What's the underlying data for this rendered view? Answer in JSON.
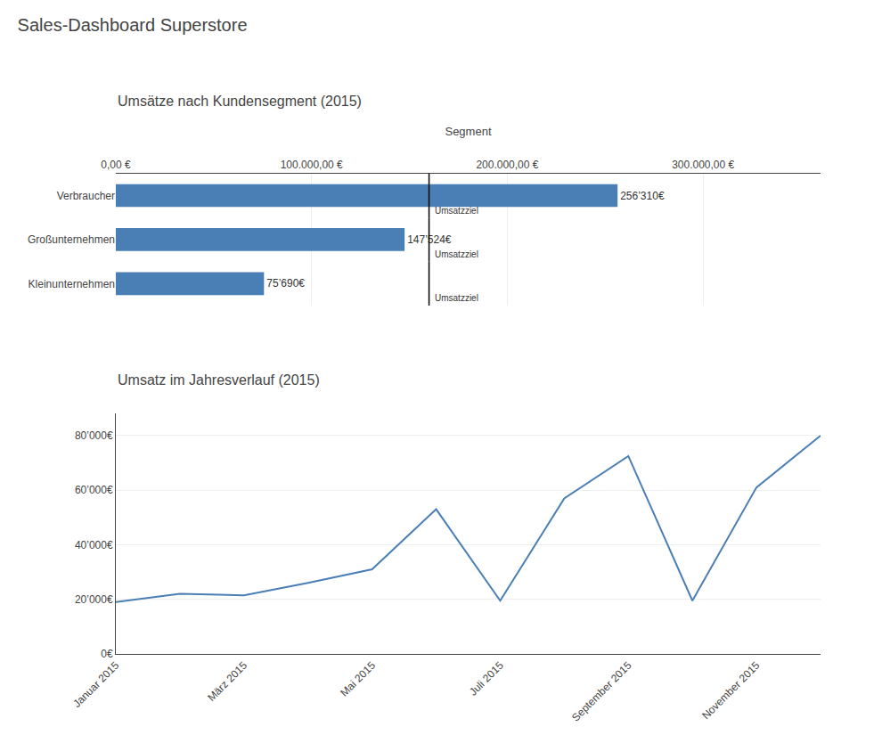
{
  "title": "Sales-Dashboard Superstore",
  "chart_data": [
    {
      "type": "bar",
      "orientation": "horizontal",
      "title": "Umsätze nach Kundensegment (2015)",
      "xlabel": "Segment",
      "categories": [
        "Kleinunternehmen",
        "Großunternehmen",
        "Verbraucher"
      ],
      "values": [
        75690,
        147524,
        256310
      ],
      "value_labels": [
        "75’690€",
        "147’524€",
        "256’310€"
      ],
      "data_labels": true,
      "color": "#4a7fb5",
      "xlim": [
        0,
        360000
      ],
      "xticks": [
        {
          "value": 0,
          "label": "0,00 €"
        },
        {
          "value": 100000,
          "label": "100.000,00 €"
        },
        {
          "value": 200000,
          "label": "200.000,00 €"
        },
        {
          "value": 300000,
          "label": "300.000,00 €"
        }
      ],
      "grid": true,
      "annotations": [
        {
          "text": "Umsatzziel",
          "x": 160000,
          "category": "Verbraucher"
        },
        {
          "text": "Umsatzziel",
          "x": 160000,
          "category": "Großunternehmen"
        },
        {
          "text": "Umsatzziel",
          "x": 160000,
          "category": "Kleinunternehmen"
        }
      ]
    },
    {
      "type": "line",
      "title": "Umsatz im Jahresverlauf (2015)",
      "x": [
        1,
        2,
        3,
        4,
        5,
        6,
        7,
        8,
        9,
        10,
        11,
        12
      ],
      "values": [
        19000,
        22000,
        21500,
        26000,
        31000,
        53000,
        19500,
        57000,
        72500,
        19500,
        61000,
        80000
      ],
      "color": "#4a7fb5",
      "xlim": [
        1,
        12
      ],
      "xticks": [
        {
          "value": 1,
          "label": "Januar 2015"
        },
        {
          "value": 3,
          "label": "März 2015"
        },
        {
          "value": 5,
          "label": "Mai 2015"
        },
        {
          "value": 7,
          "label": "Juli 2015"
        },
        {
          "value": 9,
          "label": "September 2015"
        },
        {
          "value": 11,
          "label": "November 2015"
        }
      ],
      "ylim": [
        0,
        88000
      ],
      "yticks": [
        {
          "value": 0,
          "label": "0€"
        },
        {
          "value": 20000,
          "label": "20’000€"
        },
        {
          "value": 40000,
          "label": "40’000€"
        },
        {
          "value": 60000,
          "label": "60’000€"
        },
        {
          "value": 80000,
          "label": "80’000€"
        }
      ],
      "grid": true
    }
  ]
}
